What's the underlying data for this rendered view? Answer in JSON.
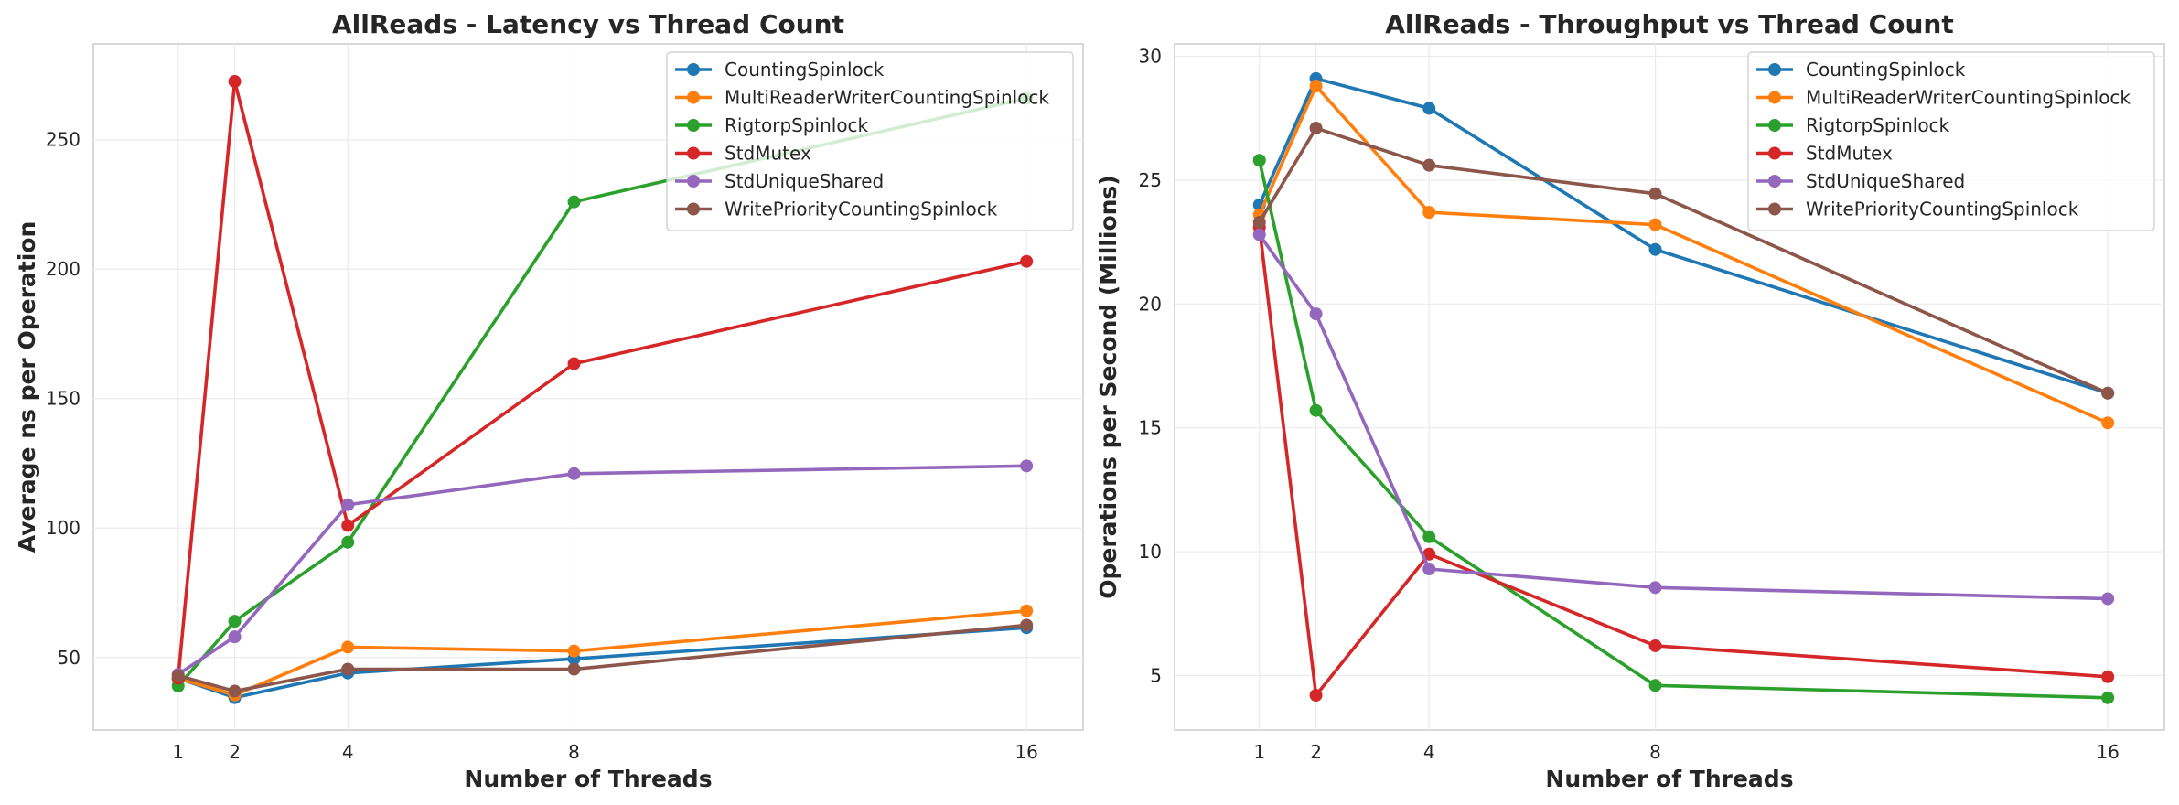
{
  "chart_data": [
    {
      "type": "line",
      "title": "AllReads - Latency vs Thread Count",
      "xlabel": "Number of Threads",
      "ylabel": "Average ns per Operation",
      "x": [
        1,
        2,
        4,
        8,
        16
      ],
      "xticks": [
        "1",
        "2",
        "4",
        "8",
        "16"
      ],
      "xlim": [
        -0.5,
        17
      ],
      "ylim": [
        22,
        287
      ],
      "yticks": [
        50,
        100,
        150,
        200,
        250
      ],
      "grid": true,
      "legend_position": "top-right",
      "series": [
        {
          "name": "CountingSpinlock",
          "color": "#1f77b4",
          "values": [
            42,
            34.5,
            44,
            49.5,
            61.5
          ]
        },
        {
          "name": "MultiReaderWriterCountingSpinlock",
          "color": "#ff7f0e",
          "values": [
            42,
            35.5,
            54,
            52.5,
            68
          ]
        },
        {
          "name": "RigtorpSpinlock",
          "color": "#2ca02c",
          "values": [
            39,
            64,
            94.5,
            226,
            266
          ]
        },
        {
          "name": "StdMutex",
          "color": "#d62728",
          "values": [
            42,
            272.5,
            101,
            163.5,
            203
          ]
        },
        {
          "name": "StdUniqueShared",
          "color": "#9467bd",
          "values": [
            43.5,
            58,
            109,
            121,
            124
          ]
        },
        {
          "name": "WritePriorityCountingSpinlock",
          "color": "#8c564b",
          "values": [
            43,
            37,
            45.5,
            45.5,
            62.5
          ]
        }
      ]
    },
    {
      "type": "line",
      "title": "AllReads - Throughput vs Thread Count",
      "xlabel": "Number of Threads",
      "ylabel": "Operations per Second (Millions)",
      "x": [
        1,
        2,
        4,
        8,
        16
      ],
      "xticks": [
        "1",
        "2",
        "4",
        "8",
        "16"
      ],
      "xlim": [
        -0.5,
        17
      ],
      "ylim": [
        2.8,
        30.5
      ],
      "yticks": [
        5,
        10,
        15,
        20,
        25,
        30
      ],
      "grid": true,
      "legend_position": "top-right",
      "series": [
        {
          "name": "CountingSpinlock",
          "color": "#1f77b4",
          "values": [
            24,
            29.1,
            27.9,
            22.2,
            16.4
          ]
        },
        {
          "name": "MultiReaderWriterCountingSpinlock",
          "color": "#ff7f0e",
          "values": [
            23.6,
            28.8,
            23.7,
            23.2,
            15.2
          ]
        },
        {
          "name": "RigtorpSpinlock",
          "color": "#2ca02c",
          "values": [
            25.8,
            15.7,
            10.6,
            4.6,
            4.1
          ]
        },
        {
          "name": "StdMutex",
          "color": "#d62728",
          "values": [
            23.1,
            4.2,
            9.9,
            6.2,
            4.95
          ]
        },
        {
          "name": "StdUniqueShared",
          "color": "#9467bd",
          "values": [
            22.8,
            19.6,
            9.3,
            8.55,
            8.1
          ]
        },
        {
          "name": "WritePriorityCountingSpinlock",
          "color": "#8c564b",
          "values": [
            23.3,
            27.1,
            25.6,
            24.45,
            16.4
          ]
        }
      ]
    }
  ]
}
